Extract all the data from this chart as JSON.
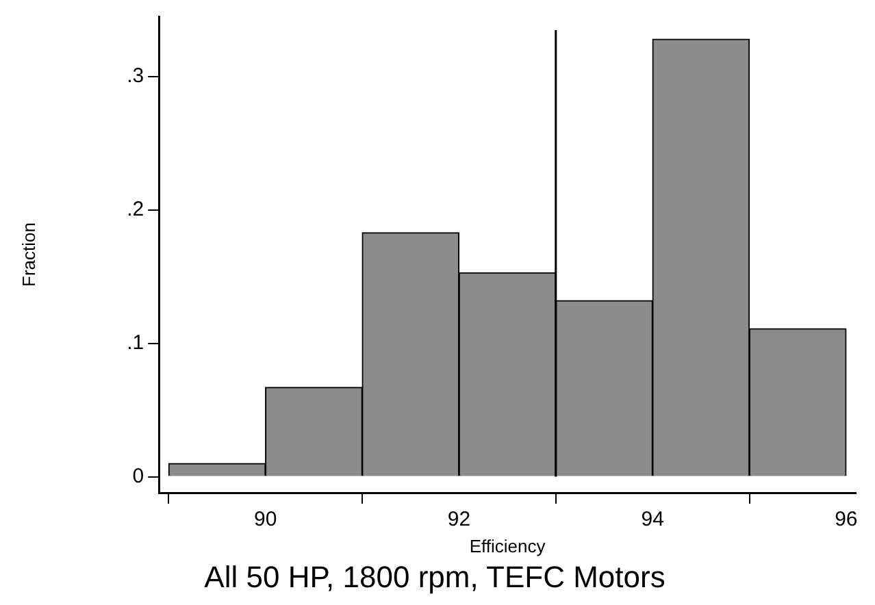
{
  "chart_data": {
    "type": "histogram",
    "title": "All 50 HP, 1800 rpm, TEFC Motors",
    "xlabel": "Efficiency",
    "ylabel": "Fraction",
    "bins": [
      89,
      90,
      91,
      92,
      93,
      94,
      95,
      96
    ],
    "values": [
      0.01,
      0.067,
      0.183,
      0.153,
      0.132,
      0.328,
      0.111
    ],
    "color": "#8c8c8c",
    "xlim": [
      88.9,
      96.1
    ],
    "xticks": [
      90,
      92,
      94,
      96
    ],
    "ylim": [
      -0.012,
      0.345
    ],
    "yticks": [
      {
        "value": 0,
        "label": "0"
      },
      {
        "value": 0.1,
        "label": ".1"
      },
      {
        "value": 0.2,
        "label": ".2"
      },
      {
        "value": 0.3,
        "label": ".3"
      }
    ],
    "ref_lines": [
      {
        "axis": "x",
        "value": 93,
        "color": "#000000"
      }
    ],
    "grid": false,
    "legend": false
  }
}
